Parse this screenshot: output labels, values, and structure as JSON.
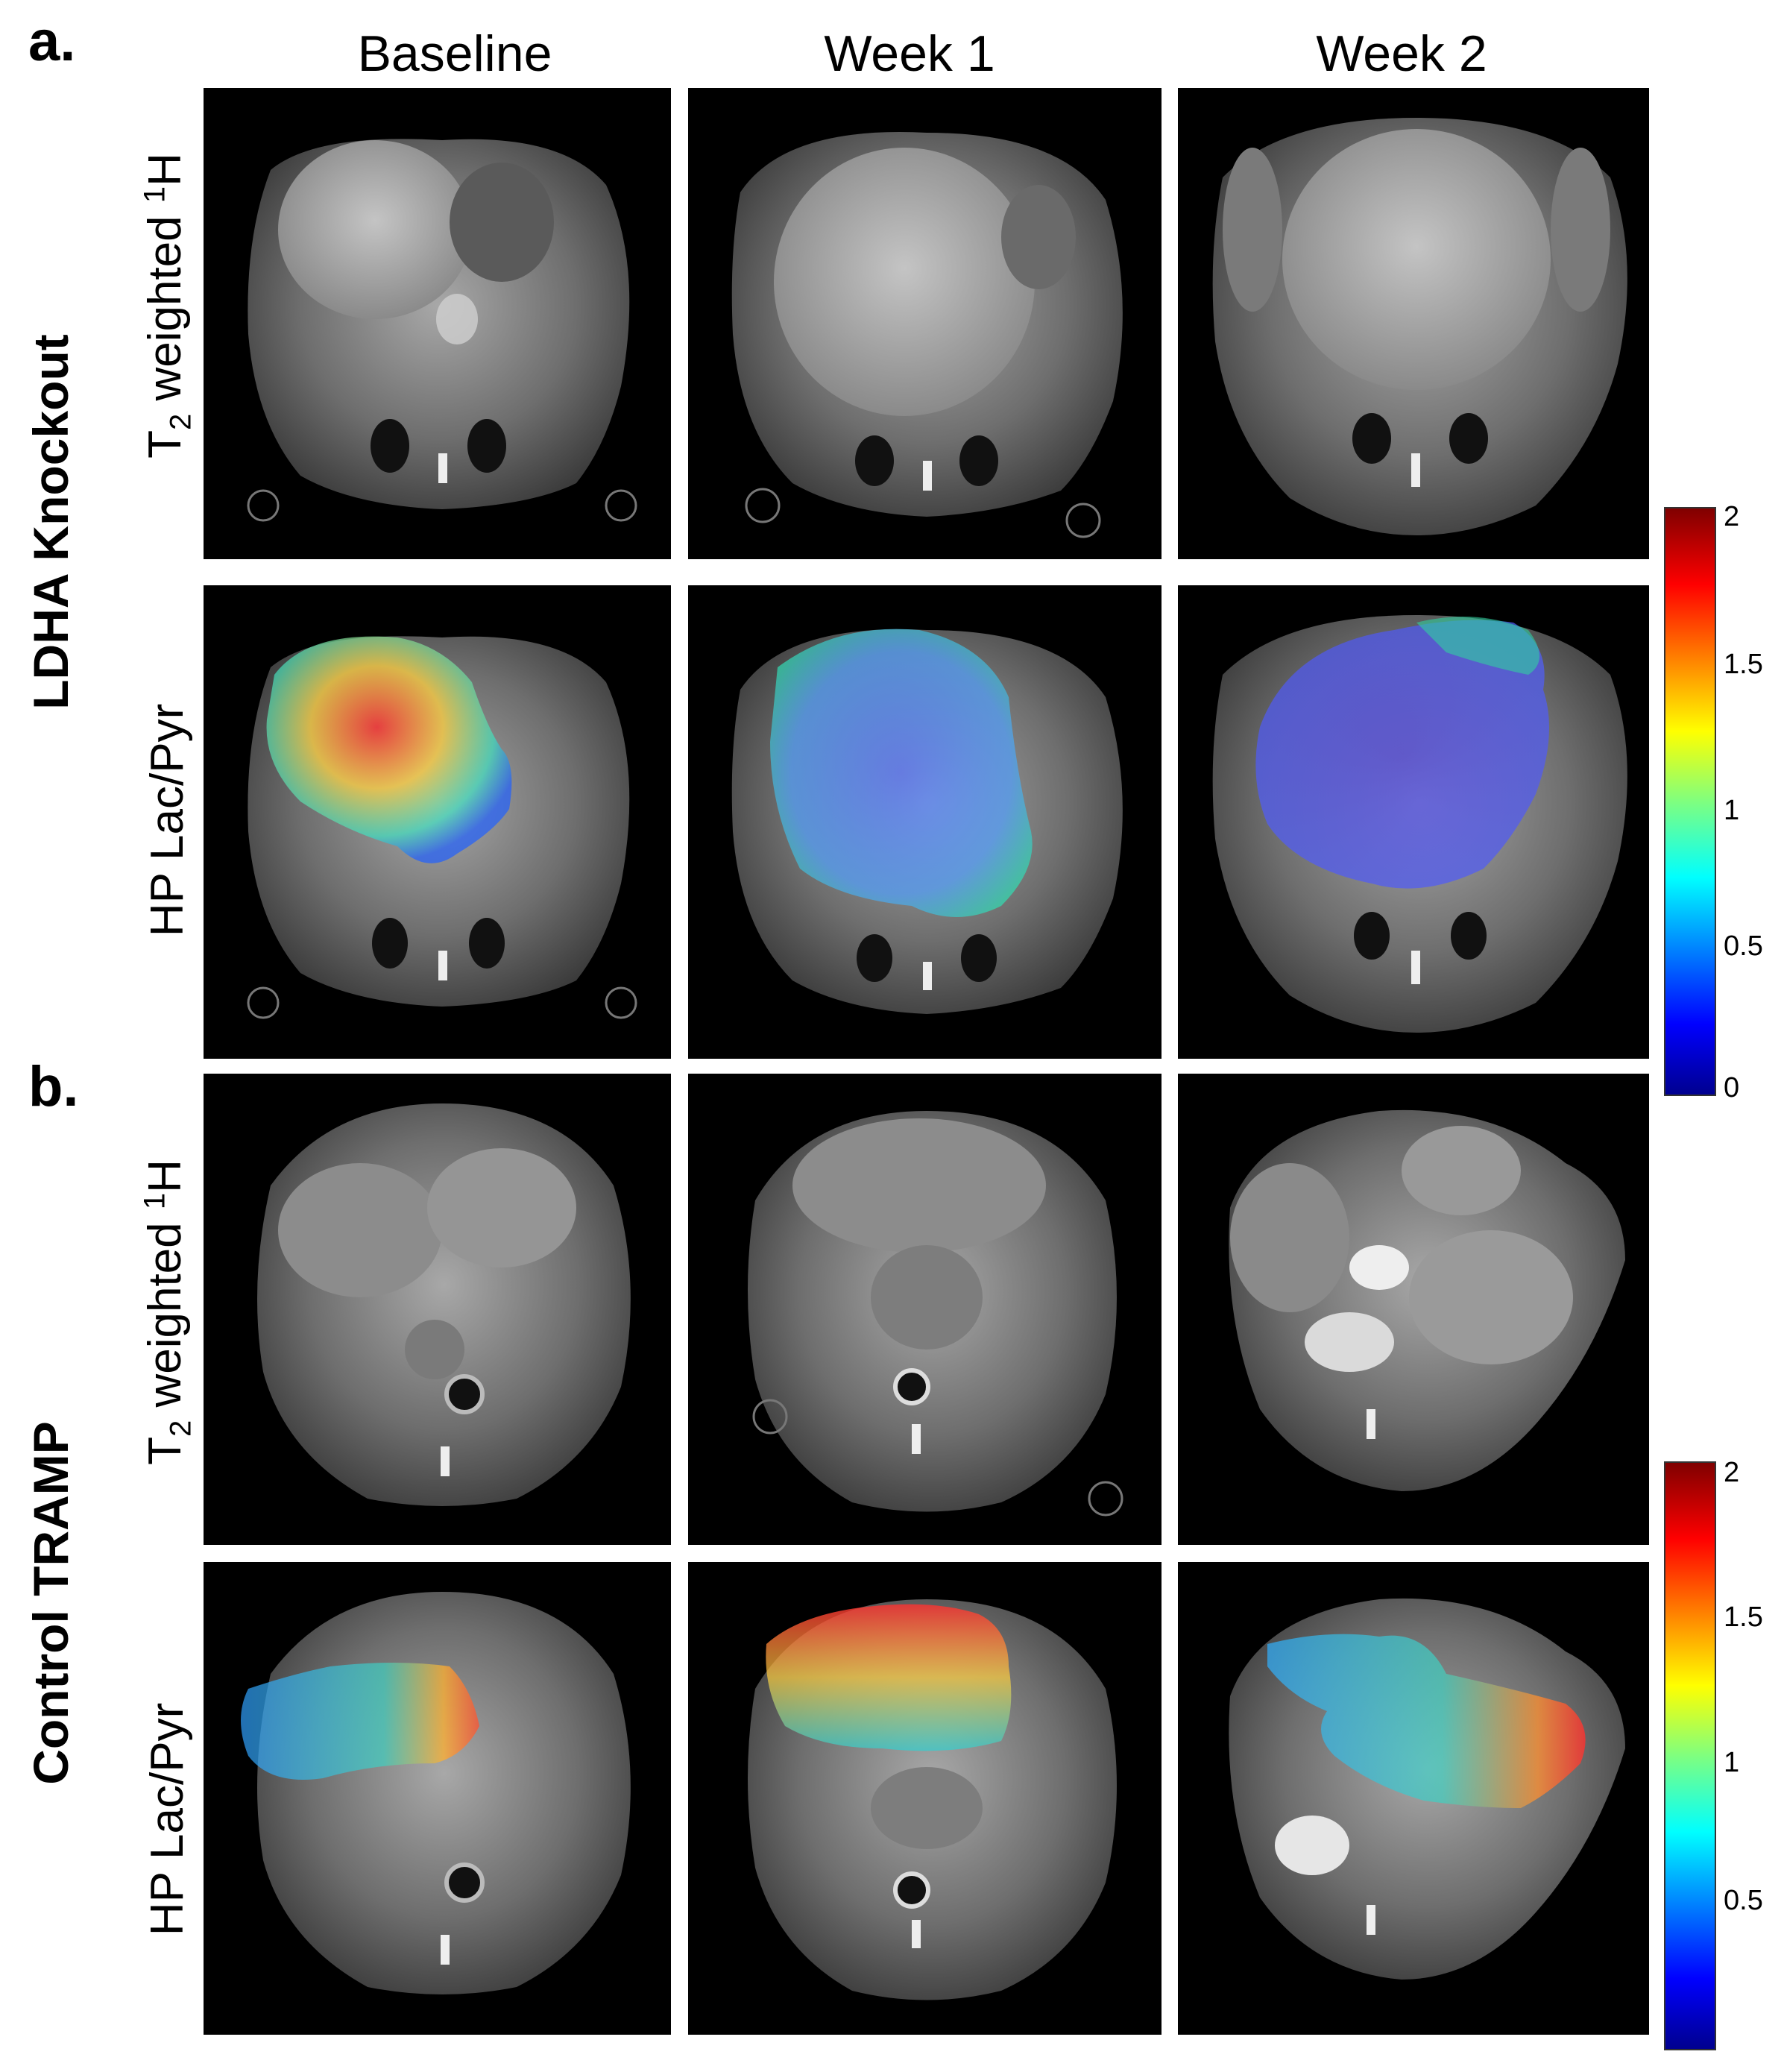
{
  "panels": {
    "a": "a.",
    "b": "b."
  },
  "columns": [
    "Baseline",
    "Week 1",
    "Week 2"
  ],
  "groups": {
    "a": "LDHA Knockout",
    "b": "Control TRAMP"
  },
  "rows": {
    "t2_main": "T",
    "t2_sub": "2",
    "t2_rest": "weighted ",
    "t2_sup": "1",
    "t2_end": "H",
    "hp": "HP Lac/Pyr"
  },
  "colorbar_a": {
    "ticks": [
      "2",
      "1.5",
      "1",
      "0.5",
      "0"
    ]
  },
  "colorbar_b": {
    "ticks": [
      "2",
      "1.5",
      "1",
      "0.5"
    ]
  },
  "colors": {
    "background": "#ffffff",
    "image_background": "#000000",
    "jet_low": "#00008f",
    "jet_high": "#800000"
  }
}
